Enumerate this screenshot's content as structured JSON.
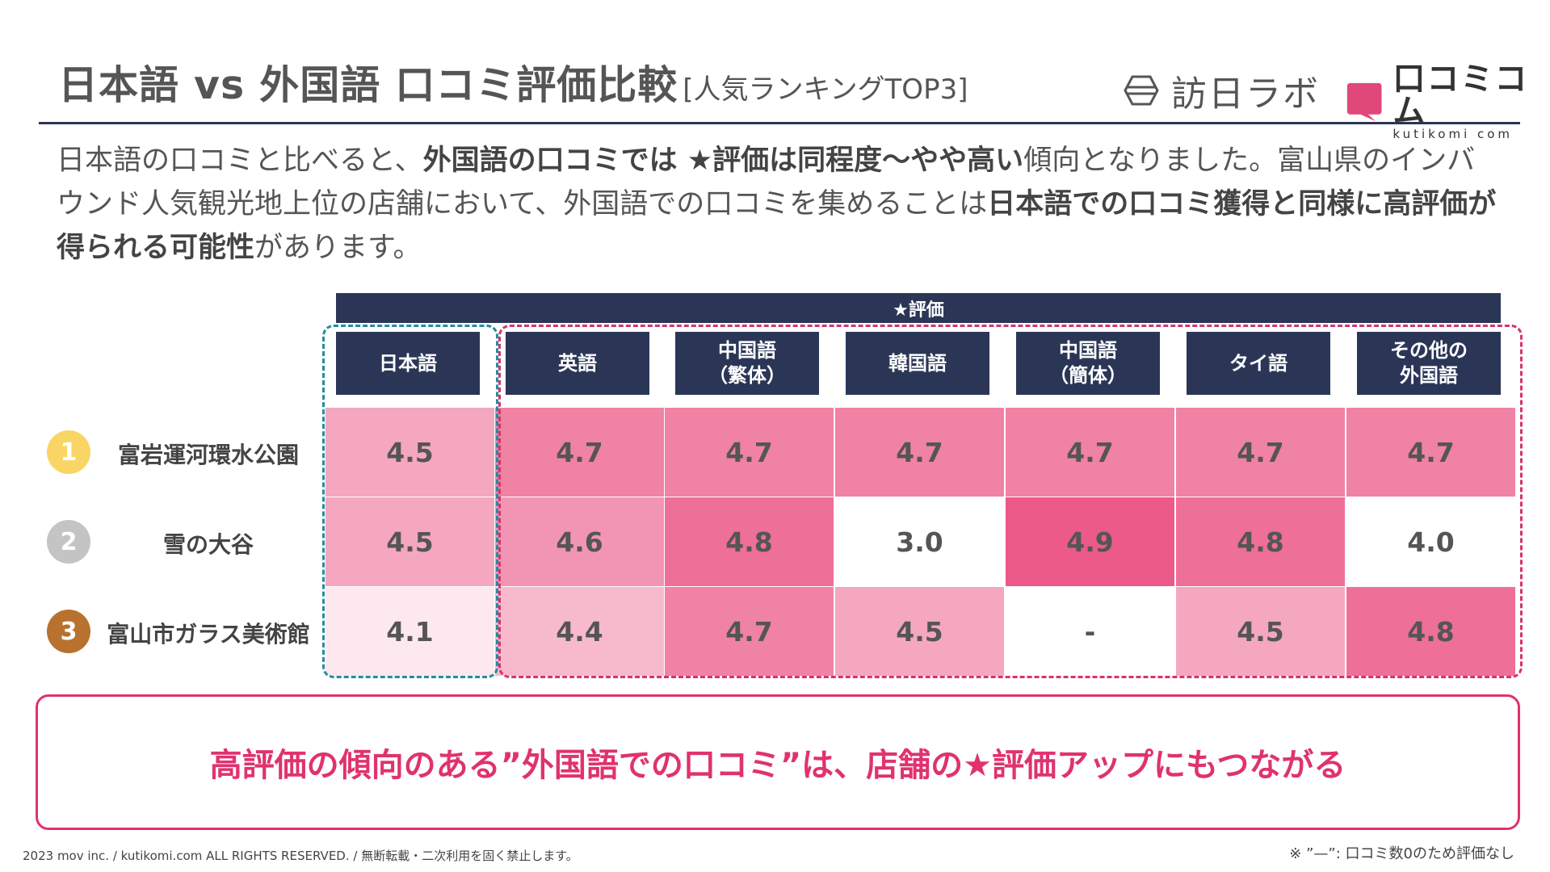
{
  "header": {
    "title_main": "日本語 vs 外国語 口コミ評価比較",
    "title_sub": "[人気ランキングTOP3]",
    "logo_houjin": "訪日ラボ",
    "logo_kutikomi_name": "口コミコム",
    "logo_kutikomi_sub": "kutikomi com"
  },
  "lead": {
    "p1": "日本語の口コミと比べると、",
    "b1": "外国語の口コミでは ★評価は同程度〜やや高い",
    "p2": "傾向となりました。富山県のインバウンド人気観光地上位の店舗において、外国語での口コミを集めることは",
    "b2": "日本語での口コミ獲得と同様に高評価が得られる可能性",
    "p3": "があります。"
  },
  "table": {
    "eval_label": "★評価",
    "columns": [
      "日本語",
      "英語",
      "中国語\n（繁体）",
      "韓国語",
      "中国語\n（簡体）",
      "タイ語",
      "その他の\n外国語"
    ],
    "rows": [
      {
        "rank": "1",
        "name": "富岩運河環水公園",
        "values": [
          "4.5",
          "4.7",
          "4.7",
          "4.7",
          "4.7",
          "4.7",
          "4.7"
        ]
      },
      {
        "rank": "2",
        "name": "雪の大谷",
        "values": [
          "4.5",
          "4.6",
          "4.8",
          "3.0",
          "4.9",
          "4.8",
          "4.0"
        ]
      },
      {
        "rank": "3",
        "name": "富山市ガラス美術館",
        "values": [
          "4.1",
          "4.4",
          "4.7",
          "4.5",
          "-",
          "4.5",
          "4.8"
        ]
      }
    ]
  },
  "colors": {
    "navy": "#2b3657",
    "accent": "#e0326f",
    "teal": "#1f8e9e",
    "rank1": "#f9d565",
    "rank2": "#c4c4c4",
    "rank3": "#b8712f",
    "cell_fills": [
      [
        "#f4a7bf",
        "#f082a4",
        "#f082a4",
        "#f082a4",
        "#f082a4",
        "#f082a4",
        "#f082a4"
      ],
      [
        "#f4a7bf",
        "#f294b3",
        "#ee6f97",
        "#ffffff",
        "#eb5a89",
        "#ee6f97",
        "#ffffff"
      ],
      [
        "#fde8ef",
        "#f7bacd",
        "#f082a4",
        "#f4a7bf",
        "#ffffff",
        "#f4a7bf",
        "#ee6f97"
      ]
    ]
  },
  "conclusion": "高評価の傾向のある”外国語での口コミ”は、店舗の★評価アップにもつながる",
  "footer": {
    "copyright": "2023 mov inc. / kutikomi.com ALL RIGHTS RESERVED. / 無断転載・二次利用を固く禁止します。",
    "note": "※ ”—”: 口コミ数0のため評価なし"
  }
}
